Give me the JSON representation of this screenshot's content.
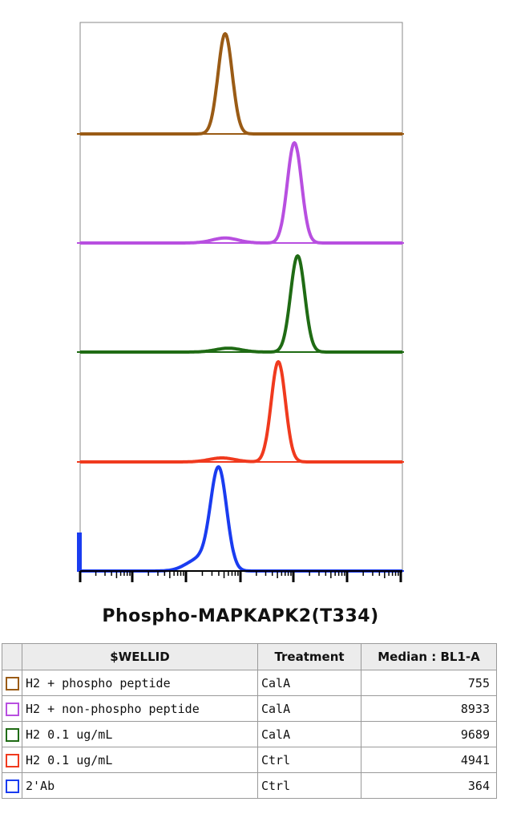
{
  "chart_data": {
    "type": "area",
    "xlabel": "Phospho-MAPKAPK2(T334)",
    "ylabel": "",
    "title": "",
    "grid": false,
    "legend": "table-below",
    "x_ticks_labeled": false,
    "series": [
      {
        "name": "H2 + phospho peptide",
        "color": "#9a5b15",
        "peaks": [
          {
            "center": 0.45,
            "width": 0.022,
            "height": 1.0
          }
        ]
      },
      {
        "name": "H2 + non-phospho peptide",
        "color": "#b84fe0",
        "peaks": [
          {
            "center": 0.665,
            "width": 0.022,
            "height": 1.0
          },
          {
            "center": 0.45,
            "width": 0.04,
            "height": 0.05
          }
        ]
      },
      {
        "name": "H2 0.1 ug/mL",
        "color": "#1f6b14",
        "peaks": [
          {
            "center": 0.675,
            "width": 0.022,
            "height": 1.0
          },
          {
            "center": 0.46,
            "width": 0.04,
            "height": 0.04
          }
        ]
      },
      {
        "name": "H2 0.1 ug/mL",
        "color": "#f03a1e",
        "peaks": [
          {
            "center": 0.615,
            "width": 0.022,
            "height": 1.0
          },
          {
            "center": 0.44,
            "width": 0.04,
            "height": 0.04
          }
        ]
      },
      {
        "name": "2'Ab",
        "color": "#1a3cf0",
        "peaks": [
          {
            "center": 0.43,
            "width": 0.025,
            "height": 1.0
          },
          {
            "center": 0.37,
            "width": 0.04,
            "height": 0.12
          }
        ]
      }
    ]
  },
  "table": {
    "headers": [
      "",
      "$WELLID",
      "Treatment",
      "Median : BL1-A"
    ],
    "rows": [
      {
        "color": "#9a5b15",
        "wellid": "H2 + phospho peptide",
        "treatment": "CalA",
        "median": "755"
      },
      {
        "color": "#b84fe0",
        "wellid": "H2 + non-phospho peptide",
        "treatment": "CalA",
        "median": "8933"
      },
      {
        "color": "#1f6b14",
        "wellid": "H2 0.1 ug/mL",
        "treatment": "CalA",
        "median": "9689"
      },
      {
        "color": "#f03a1e",
        "wellid": "H2 0.1 ug/mL",
        "treatment": "Ctrl",
        "median": "4941"
      },
      {
        "color": "#1a3cf0",
        "wellid": "2'Ab",
        "treatment": "Ctrl",
        "median": "364"
      }
    ]
  }
}
